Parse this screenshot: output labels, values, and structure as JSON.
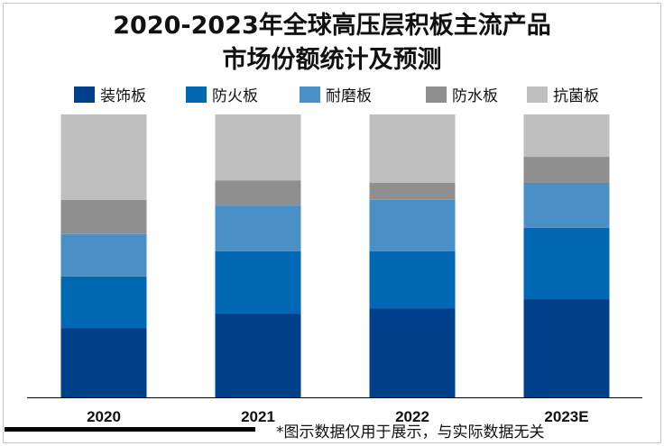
{
  "chart_data": {
    "type": "bar",
    "stacked": true,
    "title": "2020-2023年全球高压层积板主流产品市场份额统计及预测",
    "title_lines": [
      "2020-2023年全球高压层积板主流产品",
      "市场份额统计及预测"
    ],
    "categories": [
      "2020",
      "2021",
      "2022",
      "2023E"
    ],
    "series": [
      {
        "name": "装饰板",
        "color": "#003f8a",
        "values": [
          24.5,
          29.6,
          31.5,
          34.7
        ]
      },
      {
        "name": "防火板",
        "color": "#0067b3",
        "values": [
          18.2,
          22.0,
          20.1,
          25.2
        ]
      },
      {
        "name": "耐磨板",
        "color": "#4a90c6",
        "values": [
          15.0,
          16.2,
          18.2,
          15.9
        ]
      },
      {
        "name": "防水板",
        "color": "#8f8f8f",
        "values": [
          12.1,
          8.9,
          6.1,
          9.2
        ]
      },
      {
        "name": "抗菌板",
        "color": "#bfbfbf",
        "values": [
          30.2,
          23.3,
          24.1,
          15.0
        ]
      }
    ],
    "ylim": [
      0,
      100
    ],
    "xlabel": "",
    "ylabel": "",
    "grid": false,
    "legend_position": "top"
  },
  "footnote": "*图示数据仅用于展示，与实际数据无关"
}
